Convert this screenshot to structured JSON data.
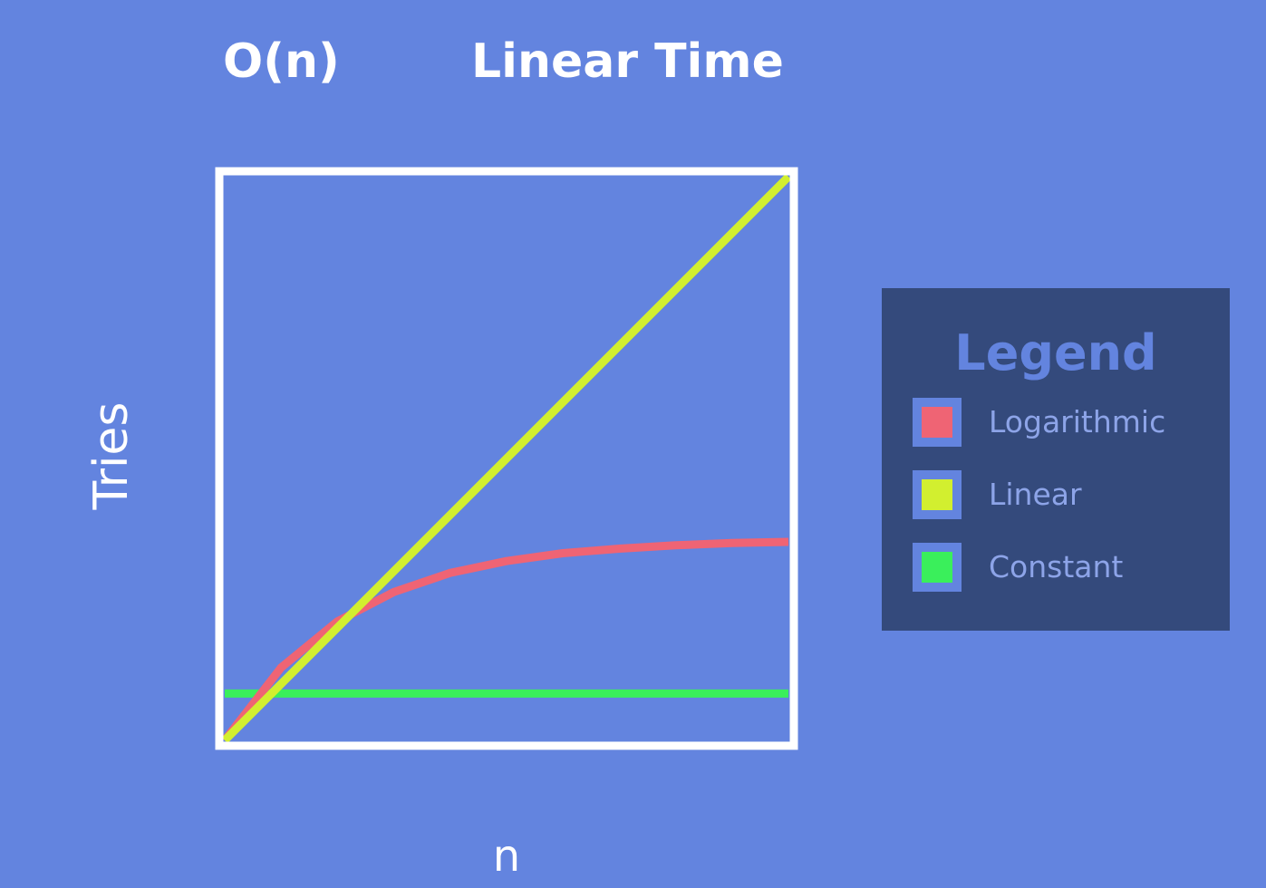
{
  "header": {
    "notation": "O(n)",
    "title": "Linear Time"
  },
  "chart_data": {
    "type": "line",
    "title": "Linear Time",
    "xlabel": "n",
    "ylabel": "Tries",
    "xlim": [
      0,
      1
    ],
    "ylim": [
      0,
      1
    ],
    "grid": false,
    "legend_position": "right",
    "series": [
      {
        "name": "Logarithmic",
        "color": "#ef6474",
        "x": [
          0,
          0.1,
          0.2,
          0.3,
          0.4,
          0.5,
          0.6,
          0.7,
          0.8,
          0.9,
          1.0
        ],
        "y": [
          0,
          0.129,
          0.211,
          0.263,
          0.297,
          0.318,
          0.332,
          0.34,
          0.346,
          0.35,
          0.352
        ]
      },
      {
        "name": "Linear",
        "color": "#d2ef2f",
        "x": [
          0,
          1
        ],
        "y": [
          0,
          1
        ]
      },
      {
        "name": "Constant",
        "color": "#3aef5b",
        "x": [
          0,
          1
        ],
        "y": [
          0.083,
          0.083
        ]
      }
    ]
  },
  "legend": {
    "title": "Legend",
    "items": [
      {
        "label": "Logarithmic",
        "color": "#ef6474"
      },
      {
        "label": "Linear",
        "color": "#d2ef2f"
      },
      {
        "label": "Constant",
        "color": "#3aef5b"
      }
    ]
  }
}
